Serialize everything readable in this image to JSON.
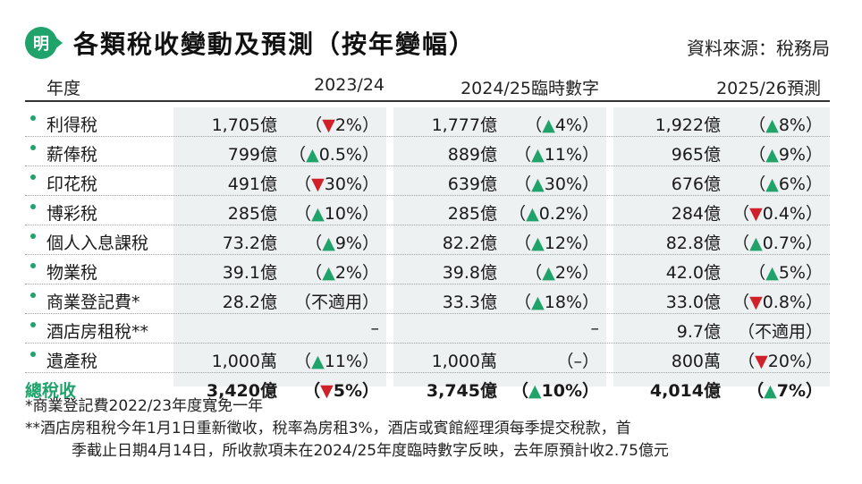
{
  "header": {
    "logo_text": "明",
    "title": "各類稅收變動及預測（按年變幅）",
    "source": "資料來源：稅務局"
  },
  "colors": {
    "accent": "#1fa36b",
    "up": "#1fa36b",
    "down": "#d0202a",
    "panel": "#eef1f2"
  },
  "columns": {
    "year_label": "年度",
    "c1": "2023/24",
    "c2": "2024/25臨時數字",
    "c3": "2025/26預測"
  },
  "rows": [
    {
      "label": "利得稅",
      "c1": {
        "value": "1,705億",
        "change": "（▼2%）",
        "dir": "down"
      },
      "c2": {
        "value": "1,777億",
        "change": "（▲4%）",
        "dir": "up"
      },
      "c3": {
        "value": "1,922億",
        "change": "（▲8%）",
        "dir": "up"
      }
    },
    {
      "label": "薪俸稅",
      "c1": {
        "value": "799億",
        "change": "（▲0.5%）",
        "dir": "up"
      },
      "c2": {
        "value": "889億",
        "change": "（▲11%）",
        "dir": "up"
      },
      "c3": {
        "value": "965億",
        "change": "（▲9%）",
        "dir": "up"
      }
    },
    {
      "label": "印花稅",
      "c1": {
        "value": "491億",
        "change": "（▼30%）",
        "dir": "down"
      },
      "c2": {
        "value": "639億",
        "change": "（▲30%）",
        "dir": "up"
      },
      "c3": {
        "value": "676億",
        "change": "（▲6%）",
        "dir": "up"
      }
    },
    {
      "label": "博彩稅",
      "c1": {
        "value": "285億",
        "change": "（▲10%）",
        "dir": "up"
      },
      "c2": {
        "value": "285億",
        "change": "（▲0.2%）",
        "dir": "up"
      },
      "c3": {
        "value": "284億",
        "change": "（▼0.4%）",
        "dir": "down"
      }
    },
    {
      "label": "個人入息課稅",
      "c1": {
        "value": "73.2億",
        "change": "（▲9%）",
        "dir": "up"
      },
      "c2": {
        "value": "82.2億",
        "change": "（▲12%）",
        "dir": "up"
      },
      "c3": {
        "value": "82.8億",
        "change": "（▲0.7%）",
        "dir": "up"
      }
    },
    {
      "label": "物業稅",
      "c1": {
        "value": "39.1億",
        "change": "（▲2%）",
        "dir": "up"
      },
      "c2": {
        "value": "39.8億",
        "change": "（▲2%）",
        "dir": "up"
      },
      "c3": {
        "value": "42.0億",
        "change": "（▲5%）",
        "dir": "up"
      }
    },
    {
      "label": "商業登記費*",
      "c1": {
        "value": "28.2億",
        "change": "（不適用）",
        "dir": "none"
      },
      "c2": {
        "value": "33.3億",
        "change": "（▲18%）",
        "dir": "up"
      },
      "c3": {
        "value": "33.0億",
        "change": "（▼0.8%）",
        "dir": "down"
      }
    },
    {
      "label": "酒店房租稅**",
      "c1": {
        "value": "",
        "change": "–",
        "dir": "none"
      },
      "c2": {
        "value": "",
        "change": "–",
        "dir": "none"
      },
      "c3": {
        "value": "9.7億",
        "change": "（不適用）",
        "dir": "none"
      }
    },
    {
      "label": "遺產稅",
      "c1": {
        "value": "1,000萬",
        "change": "（▲11%）",
        "dir": "up"
      },
      "c2": {
        "value": "1,000萬",
        "change": "（–）",
        "dir": "none"
      },
      "c3": {
        "value": "800萬",
        "change": "（▼20%）",
        "dir": "down"
      }
    }
  ],
  "total": {
    "label": "總稅收",
    "c1": {
      "value": "3,420億",
      "change": "（▼5%）",
      "dir": "down"
    },
    "c2": {
      "value": "3,745億",
      "change": "（▲10%）",
      "dir": "up"
    },
    "c3": {
      "value": "4,014億",
      "change": "（▲7%）",
      "dir": "up"
    }
  },
  "notes": [
    "*商業登記費2022/23年度寬免一年",
    "**酒店房租稅今年1月1日重新徵收，稅率為房租3%，酒店或賓館經理須每季提交稅款，首",
    "季截止日期4月14日，所收款項未在2024/25年度臨時數字反映，去年原預計收2.75億元"
  ]
}
